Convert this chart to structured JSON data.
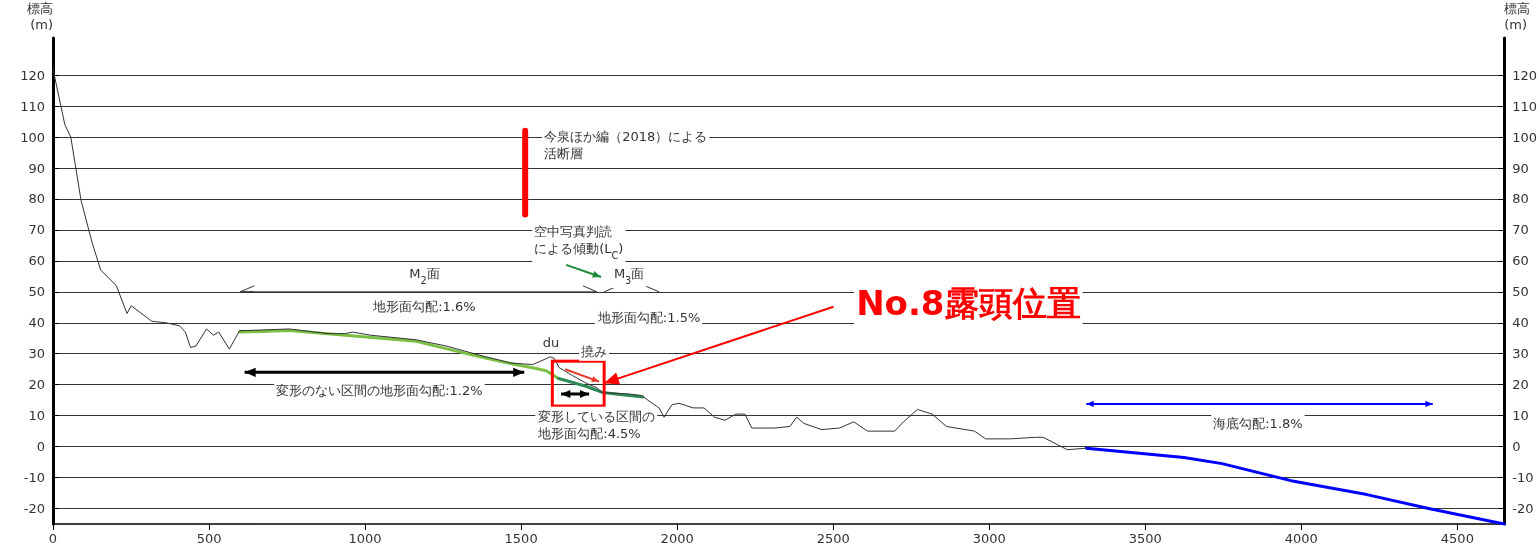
{
  "chart_data": {
    "type": "line",
    "ylabel": "標高\n(m)",
    "y2label": "標高\n(m)",
    "xlim": [
      0,
      4650
    ],
    "xticks": [
      0,
      500,
      1000,
      1500,
      2000,
      2500,
      3000,
      3500,
      4000,
      4500
    ],
    "ylim": [
      -25,
      132
    ],
    "yticks": [
      -20,
      -10,
      0,
      10,
      20,
      30,
      40,
      50,
      60,
      70,
      80,
      90,
      100,
      110,
      120
    ],
    "y2lim": [
      -25,
      132
    ],
    "y2ticks": [
      -20,
      -10,
      0,
      10,
      20,
      30,
      40,
      50,
      60,
      70,
      80,
      90,
      100,
      110,
      120
    ],
    "grid": "y",
    "series": [
      {
        "color": "#333333",
        "x": [
          0,
          38,
          57,
          90,
          125,
          153,
          203,
          237,
          251,
          316,
          362,
          406,
          424,
          441,
          458,
          492,
          514,
          531,
          565,
          598,
          620,
          757,
          882,
          937,
          960,
          1017,
          1164,
          1260,
          1368,
          1468,
          1537,
          1594,
          1606,
          1622,
          1664,
          1708,
          1743,
          1759,
          1846,
          1886,
          1913,
          1942,
          1958,
          1983,
          2006,
          2051,
          2086,
          2120,
          2153,
          2188,
          2217,
          2239,
          2313,
          2361,
          2383,
          2406,
          2463,
          2520,
          2566,
          2610,
          2697,
          2725,
          2770,
          2817,
          2863,
          2953,
          2988,
          3068,
          3148,
          3173,
          3250,
          3311
        ],
        "values": [
          122,
          104,
          100,
          79.5,
          66,
          57,
          52,
          43,
          45.5,
          40.5,
          40,
          39,
          37,
          32,
          32.5,
          38,
          36,
          37,
          31.5,
          37.5,
          37.5,
          38,
          36.5,
          36.5,
          37,
          36,
          34.5,
          32.5,
          29.5,
          27,
          26.5,
          29,
          28.5,
          25.5,
          23,
          20.5,
          19,
          17.5,
          17,
          16.5,
          14.5,
          12.5,
          9.5,
          13.5,
          14,
          12.5,
          12.5,
          9.5,
          8.5,
          10.5,
          10.5,
          6,
          6,
          6.5,
          9.5,
          7.5,
          5.5,
          6,
          8,
          5,
          5,
          8,
          12,
          10.5,
          6.5,
          5,
          2.5,
          2.5,
          3,
          3,
          -1,
          -0.5
        ]
      },
      {
        "color": "#7ac143",
        "x": [
          598,
          757,
          937,
          1164,
          1368,
          1481,
          1537,
          1580,
          1620
        ],
        "values": [
          37,
          37.5,
          36,
          34,
          29,
          26.5,
          25.5,
          24.5,
          22
        ]
      },
      {
        "color": "#2e8b57",
        "x": [
          1620,
          1708,
          1760,
          1846,
          1890
        ],
        "values": [
          22,
          19.5,
          17.5,
          16.5,
          16
        ]
      },
      {
        "color": "#0000ff",
        "x": [
          3311,
          3624,
          3746,
          3967,
          4210,
          4408,
          4650
        ],
        "values": [
          -0.5,
          -3.5,
          -5.5,
          -11,
          -15.5,
          -20,
          -25
        ]
      }
    ],
    "annotations": [
      "M$_{2}$面",
      "地形面勾配:1.6%",
      "変形のない区間の地形面勾配:1.2%",
      "du",
      "撓み",
      "変形している区間の地形面勾配:4.5%",
      "今泉ほか編（2018）による活断層",
      "空中写真判読による傾動(L$_{C}$)",
      "M$_{3}$面",
      "地形面勾配:1.5%",
      "No.8露頭位置",
      "海底勾配:1.8%"
    ]
  }
}
